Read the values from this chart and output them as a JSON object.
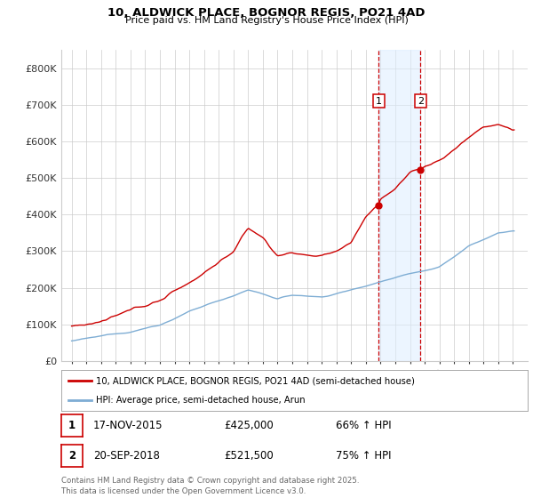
{
  "title_line1": "10, ALDWICK PLACE, BOGNOR REGIS, PO21 4AD",
  "title_line2": "Price paid vs. HM Land Registry's House Price Index (HPI)",
  "yticks": [
    0,
    100000,
    200000,
    300000,
    400000,
    500000,
    600000,
    700000,
    800000
  ],
  "ytick_labels": [
    "£0",
    "£100K",
    "£200K",
    "£300K",
    "£400K",
    "£500K",
    "£600K",
    "£700K",
    "£800K"
  ],
  "property_color": "#cc0000",
  "hpi_color": "#7eadd4",
  "marker1_x": 2015.88,
  "marker1_price": 425000,
  "marker1_label": "17-NOV-2015",
  "marker1_pct": "66% ↑ HPI",
  "marker2_x": 2018.72,
  "marker2_price": 521500,
  "marker2_label": "20-SEP-2018",
  "marker2_pct": "75% ↑ HPI",
  "legend_property": "10, ALDWICK PLACE, BOGNOR REGIS, PO21 4AD (semi-detached house)",
  "legend_hpi": "HPI: Average price, semi-detached house, Arun",
  "footnote": "Contains HM Land Registry data © Crown copyright and database right 2025.\nThis data is licensed under the Open Government Licence v3.0.",
  "background_color": "#ffffff",
  "grid_color": "#cccccc",
  "shaded_color": "#ddeeff",
  "shaded_alpha": 0.55
}
